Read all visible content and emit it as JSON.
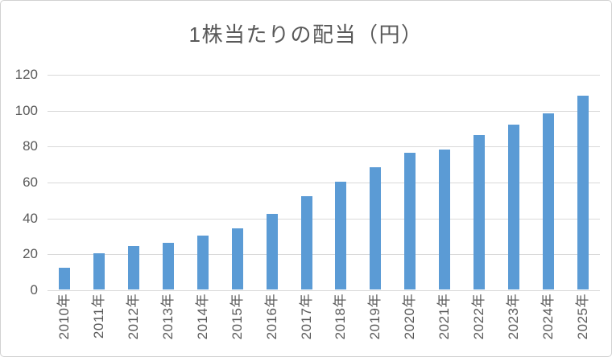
{
  "window": {
    "background_color": "#FFFFFF",
    "border_color": "#D1D1D1"
  },
  "chart_data": {
    "type": "bar",
    "title": "1株当たりの配当（円）",
    "categories": [
      "2010年",
      "2011年",
      "2012年",
      "2013年",
      "2014年",
      "2015年",
      "2016年",
      "2017年",
      "2018年",
      "2019年",
      "2020年",
      "2021年",
      "2022年",
      "2023年",
      "2024年",
      "2025年"
    ],
    "values": [
      12,
      20,
      24,
      26,
      30,
      34,
      42,
      52,
      60,
      68,
      76,
      78,
      86,
      92,
      98,
      108
    ],
    "xlabel": "",
    "ylabel": "",
    "ylim": [
      0,
      120
    ],
    "yticks": [
      0,
      20,
      40,
      60,
      80,
      100,
      120
    ],
    "x_tick_rotation": 90,
    "grid": true,
    "legend_position": "none",
    "bar_color": "#5B9BD5",
    "gridline_color": "#D9D9D9",
    "axis_line_color": "#D9D9D9",
    "text_color": "#595959"
  }
}
